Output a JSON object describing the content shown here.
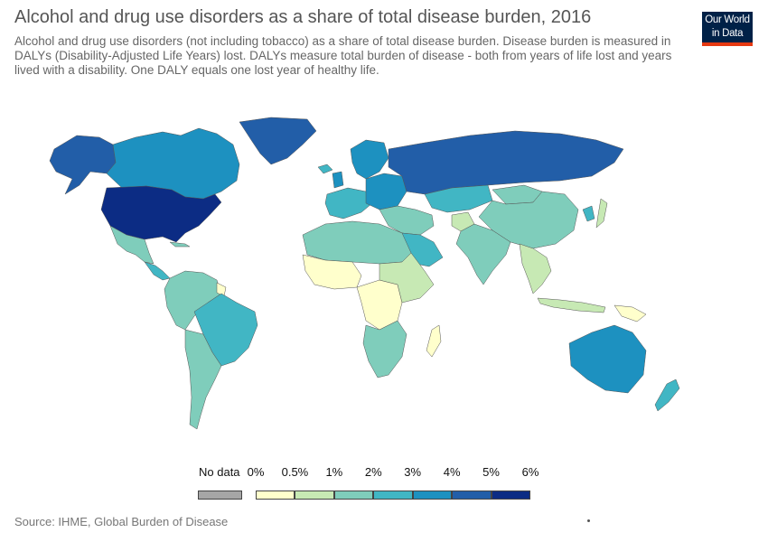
{
  "header": {
    "title": "Alcohol and drug use disorders as a share of total disease burden, 2016",
    "subtitle": "Alcohol and drug use disorders (not including tobacco) as a share of total disease burden. Disease burden is measured in DALYs (Disability-Adjusted Life Years) lost. DALYs measure total burden of disease - both from years of life lost and years lived with a disability. One DALY equals one lost year of healthy life.",
    "logo_line1": "Our World",
    "logo_line2": "in Data"
  },
  "legend": {
    "no_data_label": "No data",
    "no_data_color": "#a6a6a6",
    "ticks": [
      "0%",
      "0.5%",
      "1%",
      "2%",
      "3%",
      "4%",
      "5%",
      "6%"
    ],
    "bins": [
      {
        "from": "0%",
        "to": "0.5%",
        "color": "#ffffcc"
      },
      {
        "from": "0.5%",
        "to": "1%",
        "color": "#c7e9b4"
      },
      {
        "from": "1%",
        "to": "2%",
        "color": "#7fcdbb"
      },
      {
        "from": "2%",
        "to": "3%",
        "color": "#41b6c4"
      },
      {
        "from": "3%",
        "to": "4%",
        "color": "#1d91c0"
      },
      {
        "from": "4%",
        "to": "5%",
        "color": "#225ea8"
      },
      {
        "from": "5%",
        "to": "6%",
        "color": "#0c2c84"
      }
    ]
  },
  "regions": [
    {
      "id": "alaska",
      "bin": 5
    },
    {
      "id": "canada",
      "bin": 4
    },
    {
      "id": "greenland",
      "bin": 5
    },
    {
      "id": "usa",
      "bin": 6
    },
    {
      "id": "mexico",
      "bin": 2
    },
    {
      "id": "central-america",
      "bin": 3
    },
    {
      "id": "south-america-north",
      "bin": 2
    },
    {
      "id": "brazil",
      "bin": 3
    },
    {
      "id": "south-america-south",
      "bin": 2
    },
    {
      "id": "guyana",
      "bin": 0
    },
    {
      "id": "north-africa",
      "bin": 2
    },
    {
      "id": "west-africa",
      "bin": 0
    },
    {
      "id": "central-africa",
      "bin": 0
    },
    {
      "id": "east-africa",
      "bin": 1
    },
    {
      "id": "southern-africa",
      "bin": 2
    },
    {
      "id": "madagascar",
      "bin": 0
    },
    {
      "id": "western-europe",
      "bin": 3
    },
    {
      "id": "scandinavia",
      "bin": 4
    },
    {
      "id": "eastern-europe",
      "bin": 4
    },
    {
      "id": "russia",
      "bin": 5
    },
    {
      "id": "middle-east",
      "bin": 2
    },
    {
      "id": "arabian-peninsula",
      "bin": 3
    },
    {
      "id": "central-asia",
      "bin": 3
    },
    {
      "id": "afghanistan",
      "bin": 1
    },
    {
      "id": "south-asia",
      "bin": 2
    },
    {
      "id": "china",
      "bin": 2
    },
    {
      "id": "mongolia",
      "bin": 2
    },
    {
      "id": "southeast-asia",
      "bin": 1
    },
    {
      "id": "japan",
      "bin": 1
    },
    {
      "id": "korea",
      "bin": 3
    },
    {
      "id": "indonesia",
      "bin": 1
    },
    {
      "id": "papua",
      "bin": 0
    },
    {
      "id": "australia",
      "bin": 4
    },
    {
      "id": "new-zealand",
      "bin": 3
    },
    {
      "id": "iceland",
      "bin": 3
    },
    {
      "id": "uk",
      "bin": 4
    },
    {
      "id": "cuba",
      "bin": 2
    }
  ],
  "source": "Source: IHME, Global Burden of Disease"
}
